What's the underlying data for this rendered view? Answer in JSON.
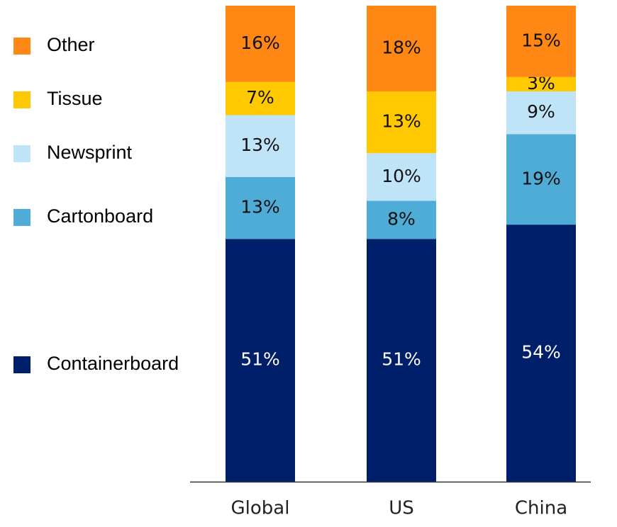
{
  "chart_data": {
    "type": "stacked_bar",
    "categories": [
      "Global",
      "US",
      "China"
    ],
    "series": [
      {
        "name": "Containerboard",
        "color": "#001f6b",
        "values": [
          51,
          51,
          54
        ],
        "value_labels": [
          "51%",
          "51%",
          "54%"
        ]
      },
      {
        "name": "Cartonboard",
        "color": "#4facd6",
        "values": [
          13,
          8,
          19
        ],
        "value_labels": [
          "13%",
          "8%",
          "19%"
        ]
      },
      {
        "name": "Newsprint",
        "color": "#bfe4f7",
        "values": [
          13,
          10,
          9
        ],
        "value_labels": [
          "13%",
          "10%",
          "9%"
        ]
      },
      {
        "name": "Tissue",
        "color": "#ffc800",
        "values": [
          7,
          13,
          3
        ],
        "value_labels": [
          "7%",
          "13%",
          "3%"
        ]
      },
      {
        "name": "Other",
        "color": "#ff8714",
        "values": [
          16,
          18,
          15
        ],
        "value_labels": [
          "16%",
          "18%",
          "15%"
        ]
      }
    ],
    "ylim": [
      0,
      100
    ]
  }
}
